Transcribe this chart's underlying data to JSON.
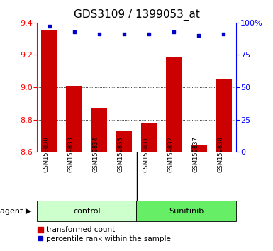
{
  "title": "GDS3109 / 1399053_at",
  "samples": [
    "GSM159830",
    "GSM159833",
    "GSM159834",
    "GSM159835",
    "GSM159831",
    "GSM159832",
    "GSM159837",
    "GSM159838"
  ],
  "bar_values": [
    9.35,
    9.01,
    8.87,
    8.73,
    8.78,
    9.19,
    8.64,
    9.05
  ],
  "percentile_values": [
    97,
    93,
    91,
    91,
    91,
    93,
    90,
    91
  ],
  "bar_bottom": 8.6,
  "ylim_left": [
    8.6,
    9.4
  ],
  "ylim_right": [
    0,
    100
  ],
  "yticks_left": [
    8.6,
    8.8,
    9.0,
    9.2,
    9.4
  ],
  "yticks_right": [
    0,
    25,
    50,
    75,
    100
  ],
  "ytick_labels_right": [
    "0",
    "25",
    "50",
    "75",
    "100%"
  ],
  "bar_color": "#cc0000",
  "dot_color": "#0000cc",
  "control_label": "control",
  "sunitinib_label": "Sunitinib",
  "agent_label": "agent",
  "legend_bar_label": "transformed count",
  "legend_dot_label": "percentile rank within the sample",
  "control_color": "#ccffcc",
  "sunitinib_color": "#66ee66",
  "gray_color": "#d0d0d0",
  "title_fontsize": 11,
  "tick_fontsize": 8,
  "label_fontsize": 7,
  "bar_width": 0.65
}
